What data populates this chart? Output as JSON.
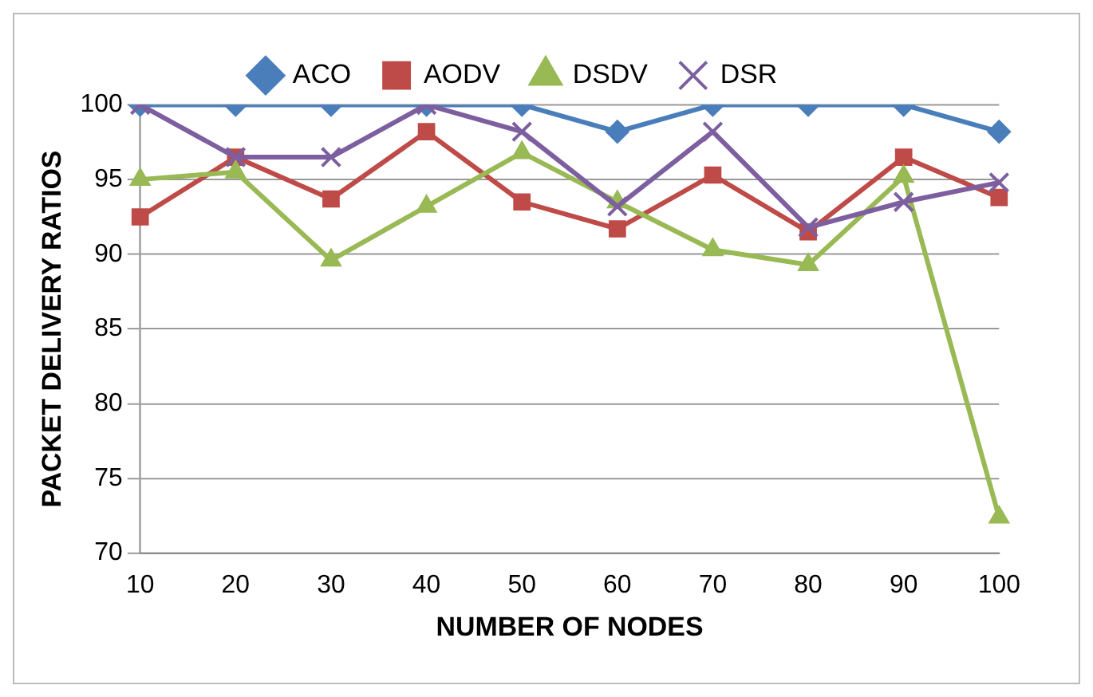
{
  "chart_data": {
    "type": "line",
    "xlabel": "NUMBER OF NODES",
    "ylabel": "PACKET DELIVERY RATIOS",
    "categories": [
      "10",
      "20",
      "30",
      "40",
      "50",
      "60",
      "70",
      "80",
      "90",
      "100"
    ],
    "series": [
      {
        "name": "ACO",
        "color": "#4a7ebb",
        "marker": "diamond",
        "values": [
          100,
          100,
          100,
          100,
          100,
          98.2,
          100,
          100,
          100,
          98.2
        ]
      },
      {
        "name": "AODV",
        "color": "#be4b48",
        "marker": "square",
        "values": [
          92.5,
          96.5,
          93.7,
          98.2,
          93.5,
          91.7,
          95.3,
          91.5,
          96.5,
          93.8
        ]
      },
      {
        "name": "DSDV",
        "color": "#98b954",
        "marker": "triangle",
        "values": [
          95,
          95.5,
          89.6,
          93.2,
          96.8,
          93.5,
          90.3,
          89.3,
          95.2,
          72.4
        ]
      },
      {
        "name": "DSR",
        "color": "#7d5fa0",
        "marker": "cross",
        "values": [
          100,
          96.5,
          96.5,
          100,
          98.2,
          93.2,
          98.2,
          91.8,
          93.5,
          94.8
        ]
      }
    ],
    "ylim": [
      70,
      100
    ],
    "yticks": [
      70,
      75,
      80,
      85,
      90,
      95,
      100
    ],
    "grid": "y",
    "legend": "top"
  }
}
